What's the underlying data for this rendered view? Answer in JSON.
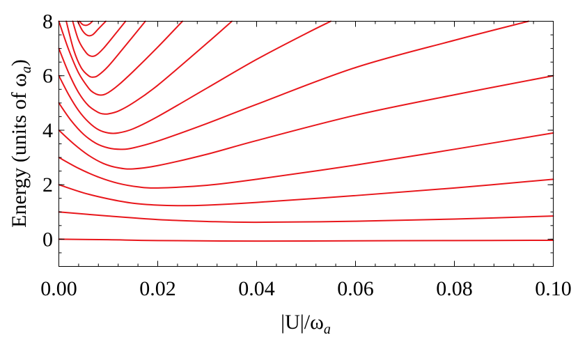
{
  "chart_data": {
    "type": "line",
    "xlabel": "|U|/ωa",
    "ylabel": "Energy (units of ωa)",
    "xlim": [
      0,
      0.1
    ],
    "ylim": [
      -1,
      8
    ],
    "grid": false,
    "x_ticks": [
      "0.00",
      "0.02",
      "0.04",
      "0.06",
      "0.08",
      "0.10"
    ],
    "y_ticks": [
      "0",
      "2",
      "4",
      "6",
      "8"
    ],
    "series": [
      {
        "values": [
          [
            0,
            0
          ],
          [
            0.01,
            -0.02
          ],
          [
            0.02,
            -0.05
          ],
          [
            0.04,
            -0.07
          ],
          [
            0.06,
            -0.06
          ],
          [
            0.08,
            -0.05
          ],
          [
            0.1,
            -0.04
          ]
        ]
      },
      {
        "values": [
          [
            0,
            1
          ],
          [
            0.01,
            0.85
          ],
          [
            0.02,
            0.72
          ],
          [
            0.03,
            0.65
          ],
          [
            0.04,
            0.62
          ],
          [
            0.06,
            0.66
          ],
          [
            0.08,
            0.74
          ],
          [
            0.1,
            0.85
          ]
        ]
      },
      {
        "values": [
          [
            0,
            2
          ],
          [
            0.005,
            1.7
          ],
          [
            0.01,
            1.48
          ],
          [
            0.015,
            1.32
          ],
          [
            0.02,
            1.25
          ],
          [
            0.025,
            1.23
          ],
          [
            0.03,
            1.25
          ],
          [
            0.04,
            1.35
          ],
          [
            0.06,
            1.6
          ],
          [
            0.08,
            1.88
          ],
          [
            0.1,
            2.2
          ]
        ]
      },
      {
        "values": [
          [
            0,
            3
          ],
          [
            0.004,
            2.6
          ],
          [
            0.008,
            2.28
          ],
          [
            0.012,
            2.05
          ],
          [
            0.016,
            1.92
          ],
          [
            0.02,
            1.88
          ],
          [
            0.03,
            1.98
          ],
          [
            0.04,
            2.2
          ],
          [
            0.06,
            2.72
          ],
          [
            0.08,
            3.3
          ],
          [
            0.1,
            3.9
          ]
        ]
      },
      {
        "values": [
          [
            0,
            4
          ],
          [
            0.003,
            3.5
          ],
          [
            0.006,
            3.08
          ],
          [
            0.009,
            2.78
          ],
          [
            0.012,
            2.62
          ],
          [
            0.015,
            2.58
          ],
          [
            0.02,
            2.7
          ],
          [
            0.03,
            3.12
          ],
          [
            0.04,
            3.62
          ],
          [
            0.06,
            4.55
          ],
          [
            0.08,
            5.3
          ],
          [
            0.1,
            6.0
          ]
        ]
      },
      {
        "values": [
          [
            0,
            5
          ],
          [
            0.0025,
            4.35
          ],
          [
            0.005,
            3.85
          ],
          [
            0.0075,
            3.52
          ],
          [
            0.01,
            3.35
          ],
          [
            0.0125,
            3.3
          ],
          [
            0.015,
            3.35
          ],
          [
            0.02,
            3.6
          ],
          [
            0.03,
            4.25
          ],
          [
            0.04,
            4.95
          ],
          [
            0.06,
            6.3
          ],
          [
            0.08,
            7.3
          ],
          [
            0.095,
            8.0
          ]
        ]
      },
      {
        "values": [
          [
            0,
            6
          ],
          [
            0.002,
            5.3
          ],
          [
            0.004,
            4.72
          ],
          [
            0.006,
            4.3
          ],
          [
            0.008,
            4.02
          ],
          [
            0.01,
            3.9
          ],
          [
            0.012,
            3.9
          ],
          [
            0.015,
            4.05
          ],
          [
            0.02,
            4.5
          ],
          [
            0.03,
            5.55
          ],
          [
            0.04,
            6.6
          ],
          [
            0.05,
            7.55
          ],
          [
            0.055,
            8.0
          ]
        ]
      },
      {
        "values": [
          [
            0,
            7
          ],
          [
            0.002,
            6.1
          ],
          [
            0.004,
            5.38
          ],
          [
            0.006,
            4.9
          ],
          [
            0.008,
            4.65
          ],
          [
            0.009,
            4.6
          ],
          [
            0.01,
            4.6
          ],
          [
            0.012,
            4.7
          ],
          [
            0.015,
            5.0
          ],
          [
            0.02,
            5.65
          ],
          [
            0.03,
            7.2
          ],
          [
            0.035,
            8.0
          ]
        ]
      },
      {
        "values": [
          [
            0,
            8
          ],
          [
            0.002,
            6.95
          ],
          [
            0.004,
            6.1
          ],
          [
            0.006,
            5.55
          ],
          [
            0.007,
            5.38
          ],
          [
            0.008,
            5.3
          ],
          [
            0.009,
            5.3
          ],
          [
            0.01,
            5.38
          ],
          [
            0.012,
            5.65
          ],
          [
            0.015,
            6.15
          ],
          [
            0.02,
            7.05
          ],
          [
            0.025,
            8.0
          ]
        ]
      },
      {
        "values": [
          [
            0.0015,
            8.0
          ],
          [
            0.003,
            6.95
          ],
          [
            0.0045,
            6.3
          ],
          [
            0.006,
            6.0
          ],
          [
            0.007,
            5.95
          ],
          [
            0.008,
            6.02
          ],
          [
            0.01,
            6.35
          ],
          [
            0.013,
            7.0
          ],
          [
            0.0175,
            8.0
          ]
        ]
      },
      {
        "values": [
          [
            0.0028,
            8.0
          ],
          [
            0.004,
            7.3
          ],
          [
            0.0055,
            6.85
          ],
          [
            0.0065,
            6.72
          ],
          [
            0.0075,
            6.75
          ],
          [
            0.009,
            7.0
          ],
          [
            0.0115,
            7.55
          ],
          [
            0.0135,
            8.0
          ]
        ]
      },
      {
        "values": [
          [
            0.0038,
            8.0
          ],
          [
            0.0048,
            7.65
          ],
          [
            0.0058,
            7.48
          ],
          [
            0.0068,
            7.5
          ],
          [
            0.008,
            7.72
          ],
          [
            0.0095,
            8.0
          ]
        ]
      },
      {
        "values": [
          [
            0.0042,
            8.0
          ],
          [
            0.0048,
            7.88
          ],
          [
            0.0055,
            7.85
          ],
          [
            0.0062,
            7.9
          ],
          [
            0.0068,
            8.0
          ]
        ]
      }
    ]
  }
}
